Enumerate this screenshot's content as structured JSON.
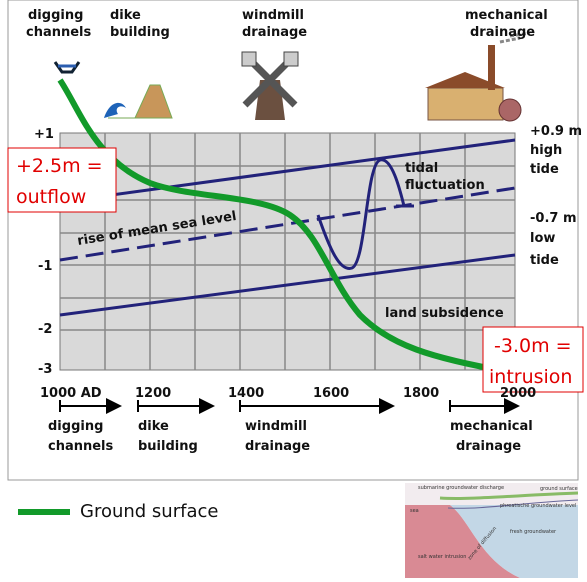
{
  "top_labels": [
    {
      "line1": "digging",
      "line2": "channels"
    },
    {
      "line1": "dike",
      "line2": "building"
    },
    {
      "line1": "windmill",
      "line2": "drainage"
    },
    {
      "line1": "mechanical",
      "line2": "drainage"
    }
  ],
  "y_labels": [
    "+1",
    "-1",
    "-2",
    "-3"
  ],
  "right_labels": {
    "high": {
      "value": "+0.9 m",
      "line1": "high",
      "line2": "tide"
    },
    "low": {
      "value": "-0.7 m",
      "line1": "low",
      "line2": "tide"
    }
  },
  "annotations": {
    "outflow": {
      "line1": "+2.5m =",
      "line2": "outflow"
    },
    "intrusion": {
      "line1": "-3.0m =",
      "line2": "intrusion"
    },
    "tidal": {
      "line1": "tidal",
      "line2": "fluctuation"
    },
    "sea_level": "rise of mean sea level",
    "subsidence": "land subsidence"
  },
  "timeline": {
    "years": [
      "1000 AD",
      "1200",
      "1400",
      "1600",
      "1800",
      "2000"
    ],
    "phases": [
      {
        "line1": "digging",
        "line2": "channels"
      },
      {
        "line1": "dike",
        "line2": "building"
      },
      {
        "line1": "windmill",
        "line2": "drainage"
      },
      {
        "line1": "mechanical",
        "line2": "drainage"
      }
    ]
  },
  "legend": "Ground surface",
  "inset": {
    "labels": [
      "submarine groundwater discharge",
      "ground surface",
      "sea",
      "phreatische groundwater level",
      "fresh groundwater",
      "zone of diffusion",
      "salt water intrusion"
    ]
  }
}
